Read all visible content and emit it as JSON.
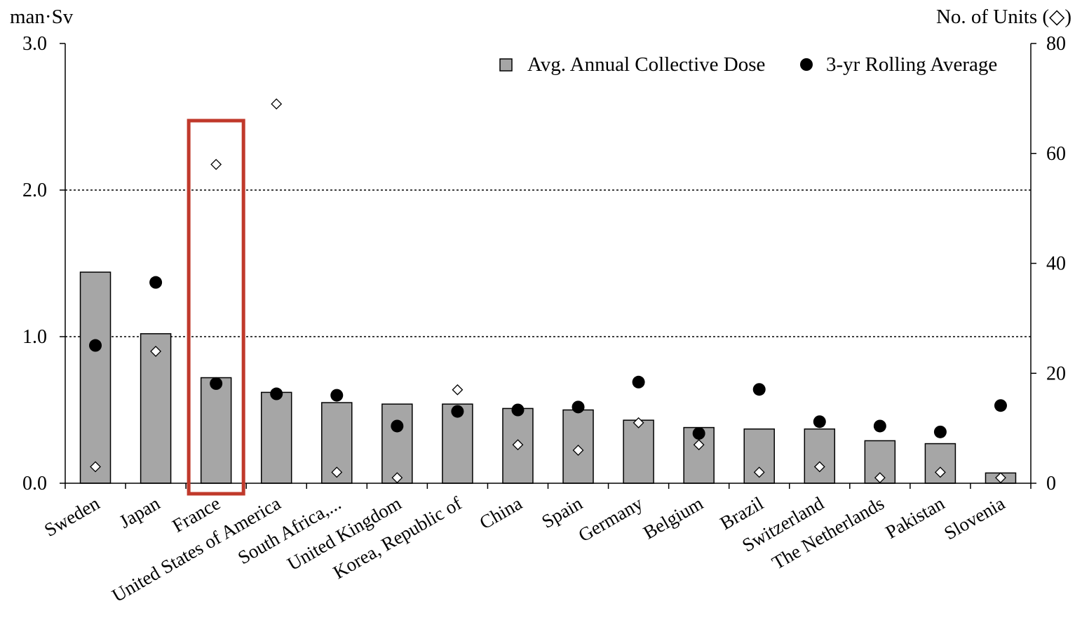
{
  "chart_data": {
    "type": "bar",
    "ylabel": "man·Sv",
    "y2label": "No. of Units (◇)",
    "ylim": [
      0,
      3.0
    ],
    "y2lim": [
      0,
      80
    ],
    "yticks": [
      "0.0",
      "1.0",
      "2.0",
      "3.0"
    ],
    "y2ticks": [
      "0",
      "20",
      "40",
      "60",
      "80"
    ],
    "grid": "dotted horizontal at 1.0 and 2.0",
    "legend_position": "top-right",
    "highlighted_category": "France",
    "colors": {
      "bar": "#a6a6a6",
      "bar_border": "#000000",
      "dot": "#000000",
      "diamond_fill": "#ffffff",
      "highlight": "#c0392b"
    },
    "categories": [
      "Sweden",
      "Japan",
      "France",
      "United States of America",
      "South Africa,...",
      "United Kingdom",
      "Korea, Republic of",
      "China",
      "Spain",
      "Germany",
      "Belgium",
      "Brazil",
      "Switzerland",
      "The Netherlands",
      "Pakistan",
      "Slovenia"
    ],
    "series": [
      {
        "name": "Avg. Annual Collective Dose",
        "kind": "bar",
        "axis": "left",
        "values": [
          1.44,
          1.02,
          0.72,
          0.62,
          0.55,
          0.54,
          0.54,
          0.51,
          0.5,
          0.43,
          0.38,
          0.37,
          0.37,
          0.29,
          0.27,
          0.07
        ]
      },
      {
        "name": "3-yr Rolling Average",
        "kind": "dot",
        "axis": "left",
        "values": [
          0.94,
          1.37,
          0.68,
          0.61,
          0.6,
          0.39,
          0.49,
          0.5,
          0.52,
          0.69,
          0.34,
          0.64,
          0.42,
          0.39,
          0.35,
          0.53
        ]
      },
      {
        "name": "No. of Units",
        "kind": "diamond",
        "axis": "right",
        "values": [
          3,
          24,
          58,
          69,
          2,
          1,
          17,
          7,
          6,
          11,
          7,
          2,
          3,
          1,
          2,
          1
        ]
      }
    ]
  }
}
